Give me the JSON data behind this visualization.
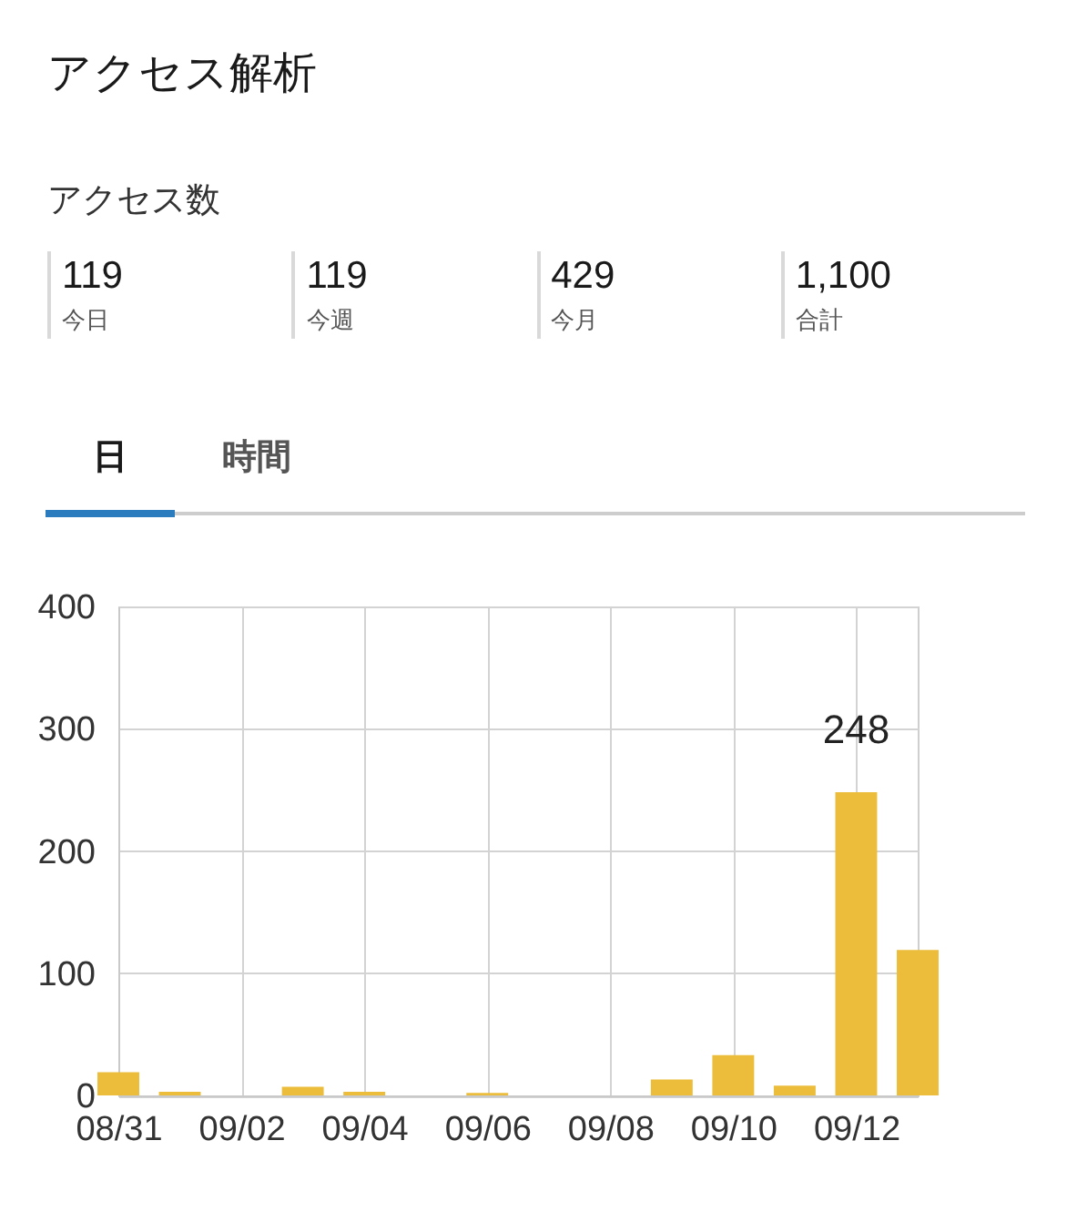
{
  "chart_data": [
    {
      "type": "other",
      "title": "アクセス解析",
      "subtitle": "アクセス数",
      "categories": [
        "今日",
        "今週",
        "今月",
        "合計"
      ],
      "values": [
        119,
        119,
        429,
        1100
      ],
      "value_labels": [
        "119",
        "119",
        "429",
        "1,100"
      ],
      "annotations": [
        "日",
        "時間"
      ]
    },
    {
      "type": "bar",
      "x": [
        "--08-31",
        "--09-01",
        "--09-02",
        "--09-03",
        "--09-04",
        "--09-05",
        "--09-06",
        "--09-07",
        "--09-08",
        "--09-09",
        "--09-10",
        "--09-11",
        "--09-12",
        "--09-13"
      ],
      "values": [
        19,
        3,
        0,
        7,
        3,
        0,
        2,
        0,
        0,
        13,
        33,
        8,
        248,
        119
      ],
      "color": "#ecbd3b",
      "value_labels": [
        null,
        null,
        null,
        null,
        null,
        null,
        null,
        null,
        null,
        null,
        null,
        null,
        "248",
        null
      ],
      "xlim": [
        "--08-31",
        "--09-13"
      ],
      "xticks": [
        {
          "value": "--08-31",
          "label": "08/31"
        },
        {
          "value": "--09-02",
          "label": "09/02"
        },
        {
          "value": "--09-04",
          "label": "09/04"
        },
        {
          "value": "--09-06",
          "label": "09/06"
        },
        {
          "value": "--09-08",
          "label": "09/08"
        },
        {
          "value": "--09-10",
          "label": "09/10"
        },
        {
          "value": "--09-12",
          "label": "09/12"
        }
      ],
      "ylim": [
        0,
        400
      ],
      "yticks": [
        0,
        100,
        200,
        300,
        400
      ],
      "grid": true
    }
  ]
}
